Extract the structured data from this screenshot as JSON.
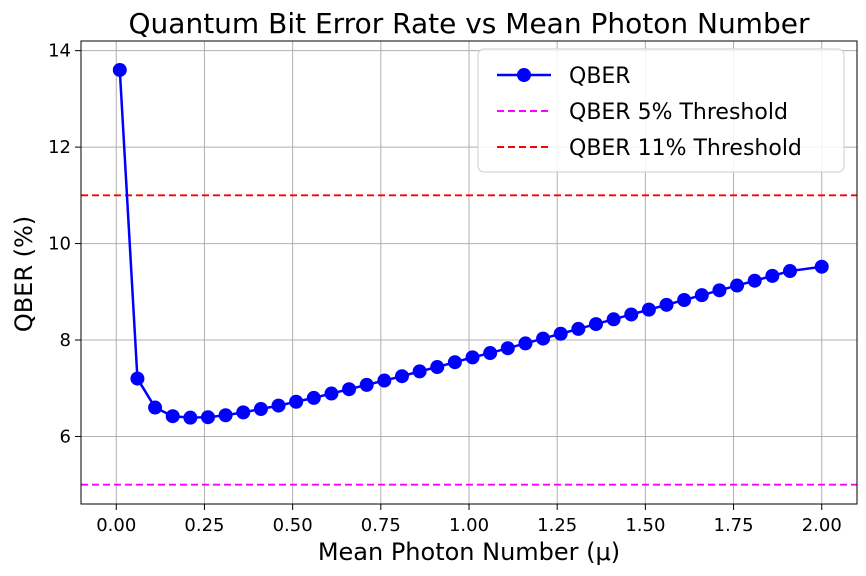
{
  "chart_data": {
    "type": "line",
    "title": "Quantum Bit Error Rate vs Mean Photon Number",
    "xlabel": "Mean Photon Number (μ)",
    "ylabel": "QBER (%)",
    "xlim": [
      -0.1,
      2.1
    ],
    "ylim": [
      4.6,
      14.2
    ],
    "xticks": [
      0,
      0.25,
      0.5,
      0.75,
      1.0,
      1.25,
      1.5,
      1.75,
      2.0
    ],
    "xtick_labels": [
      "0.00",
      "0.25",
      "0.50",
      "0.75",
      "1.00",
      "1.25",
      "1.50",
      "1.75",
      "2.00"
    ],
    "yticks": [
      6,
      8,
      10,
      12,
      14
    ],
    "ytick_labels": [
      "6",
      "8",
      "10",
      "12",
      "14"
    ],
    "grid": true,
    "legend_position": "top-right",
    "series": [
      {
        "name": "QBER",
        "color": "#0000ff",
        "style": "line-marker",
        "x": [
          0.01,
          0.06,
          0.11,
          0.16,
          0.21,
          0.26,
          0.31,
          0.36,
          0.41,
          0.46,
          0.51,
          0.56,
          0.61,
          0.66,
          0.71,
          0.76,
          0.81,
          0.86,
          0.91,
          0.96,
          1.01,
          1.06,
          1.11,
          1.16,
          1.21,
          1.26,
          1.31,
          1.36,
          1.41,
          1.46,
          1.51,
          1.56,
          1.61,
          1.66,
          1.71,
          1.76,
          1.81,
          1.86,
          1.91,
          2.0
        ],
        "y": [
          13.6,
          7.2,
          6.6,
          6.42,
          6.39,
          6.4,
          6.44,
          6.5,
          6.57,
          6.64,
          6.72,
          6.8,
          6.89,
          6.98,
          7.07,
          7.16,
          7.25,
          7.35,
          7.44,
          7.54,
          7.64,
          7.73,
          7.83,
          7.93,
          8.03,
          8.13,
          8.23,
          8.33,
          8.43,
          8.53,
          8.63,
          8.73,
          8.83,
          8.93,
          9.03,
          9.13,
          9.23,
          9.33,
          9.43,
          9.52
        ]
      },
      {
        "name": "QBER 5% Threshold",
        "color": "#ff00ff",
        "style": "hline-dashed",
        "y": 5
      },
      {
        "name": "QBER 11% Threshold",
        "color": "#ff0000",
        "style": "hline-dashed",
        "y": 11
      }
    ]
  }
}
